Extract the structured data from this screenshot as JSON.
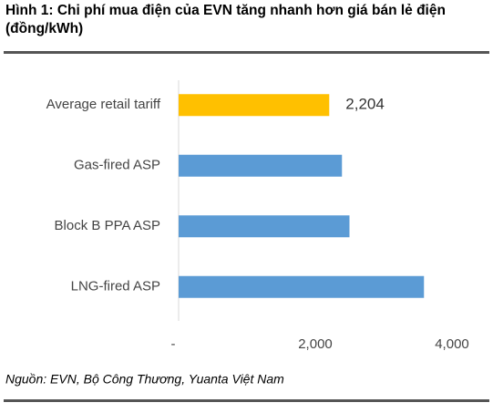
{
  "chart_data": {
    "type": "barh",
    "title": "Hình 1: Chi phí mua điện của EVN tăng nhanh hơn giá bán lẻ điện (đồng/kWh)",
    "source": "Nguồn: EVN, Bộ Công Thương, Yuanta Việt Nam",
    "categories": [
      "Average retail tariff",
      "Gas-fired ASP",
      "Block B PPA ASP",
      "LNG-fired ASP"
    ],
    "values": [
      2204,
      2390,
      2500,
      3590
    ],
    "value_labels": [
      "2,204",
      null,
      null,
      null
    ],
    "colors": [
      "#ffc000",
      "#5b9bd5",
      "#5b9bd5",
      "#5b9bd5"
    ],
    "xlim": [
      0,
      4000
    ],
    "xticks": [
      {
        "value": 0,
        "label": "-"
      },
      {
        "value": 2000,
        "label": "2,000"
      },
      {
        "value": 4000,
        "label": "4,000"
      }
    ]
  }
}
